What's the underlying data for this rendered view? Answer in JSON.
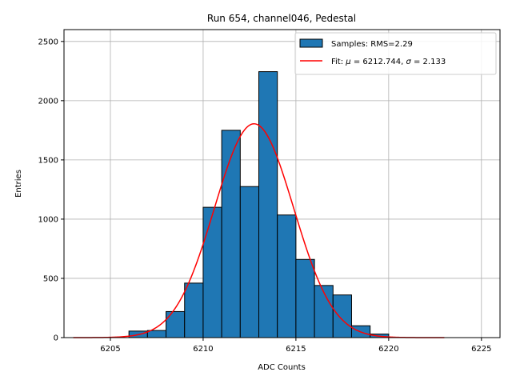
{
  "chart_data": {
    "type": "bar",
    "title": "Run 654, channel046, Pedestal",
    "xlabel": "ADC Counts",
    "ylabel": "Entries",
    "xlim": [
      6202.5,
      6226.0
    ],
    "ylim": [
      0,
      2600
    ],
    "xticks": [
      6205,
      6210,
      6215,
      6220,
      6225
    ],
    "xtick_labels": [
      "6205",
      "6210",
      "6215",
      "6220",
      "6225"
    ],
    "yticks": [
      0,
      500,
      1000,
      1500,
      2000,
      2500
    ],
    "ytick_labels": [
      "0",
      "500",
      "1000",
      "1500",
      "2000",
      "2500"
    ],
    "grid": true,
    "legend_position": "top-right",
    "bar_color": "#1f77b4",
    "fit_color": "#ff0000",
    "histogram": {
      "name": "Samples: RMS=2.29",
      "bins": [
        {
          "left": 6206,
          "right": 6207,
          "count": 55
        },
        {
          "left": 6207,
          "right": 6208,
          "count": 60
        },
        {
          "left": 6208,
          "right": 6209,
          "count": 220
        },
        {
          "left": 6209,
          "right": 6210,
          "count": 460
        },
        {
          "left": 6210,
          "right": 6211,
          "count": 1100
        },
        {
          "left": 6211,
          "right": 6212,
          "count": 1750
        },
        {
          "left": 6212,
          "right": 6213,
          "count": 1275
        },
        {
          "left": 6213,
          "right": 6214,
          "count": 2245
        },
        {
          "left": 6214,
          "right": 6215,
          "count": 1035
        },
        {
          "left": 6215,
          "right": 6216,
          "count": 660
        },
        {
          "left": 6216,
          "right": 6217,
          "count": 440
        },
        {
          "left": 6217,
          "right": 6218,
          "count": 360
        },
        {
          "left": 6218,
          "right": 6219,
          "count": 100
        },
        {
          "left": 6219,
          "right": 6220,
          "count": 30
        }
      ]
    },
    "fit": {
      "name_prefix": "Fit: ",
      "name_mu_symbol": "μ",
      "name_mid": " = 6212.744, ",
      "name_sigma_symbol": "σ",
      "name_suffix": " = 2.133",
      "mu": 6212.744,
      "sigma": 2.133,
      "amplitude": 1805,
      "x_range": [
        6203,
        6223
      ]
    }
  }
}
